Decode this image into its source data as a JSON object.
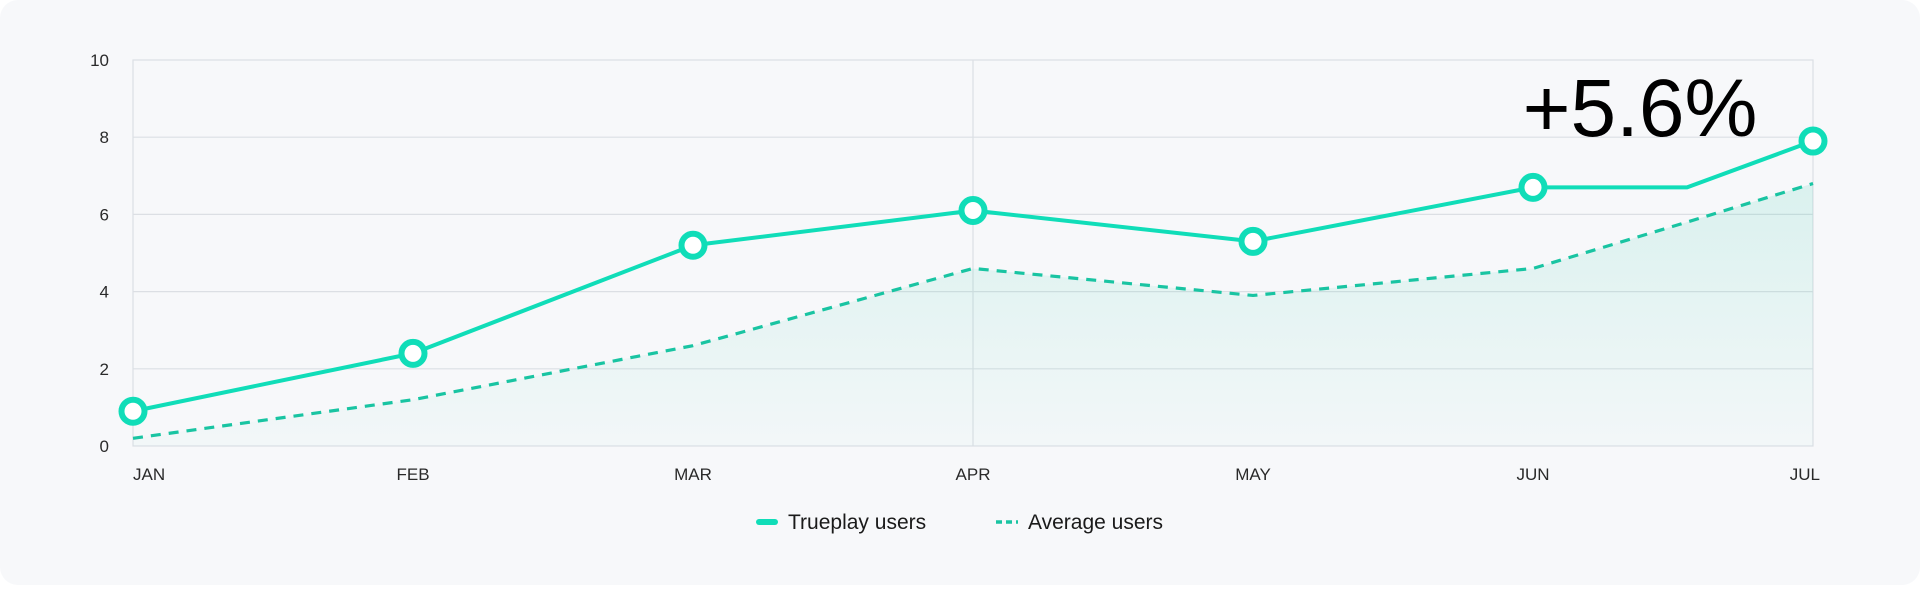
{
  "chart_data": {
    "type": "line",
    "categories": [
      "JAN",
      "FEB",
      "MAR",
      "APR",
      "MAY",
      "JUN",
      "JUL"
    ],
    "ylim": [
      0,
      10
    ],
    "yticks": [
      "0",
      "2",
      "4",
      "6",
      "8",
      "10"
    ],
    "grid": true,
    "legend_position": "bottom-center",
    "annotation": "+5.6%",
    "colors": {
      "series": "#10ddb8",
      "dashed": "#19c4a2",
      "grid": "#dcdfe4",
      "fill": "#19c4a2"
    },
    "series": [
      {
        "name": "Trueplay users",
        "style": "solid-with-markers",
        "points": [
          {
            "x": 0,
            "y": 0.9,
            "marker": true
          },
          {
            "x": 1,
            "y": 2.4,
            "marker": true
          },
          {
            "x": 2,
            "y": 5.2,
            "marker": true
          },
          {
            "x": 3,
            "y": 6.1,
            "marker": true
          },
          {
            "x": 4,
            "y": 5.3,
            "marker": true
          },
          {
            "x": 5,
            "y": 6.7,
            "marker": true
          },
          {
            "x": 5.55,
            "y": 6.7,
            "marker": false
          },
          {
            "x": 6,
            "y": 7.9,
            "marker": true
          }
        ]
      },
      {
        "name": "Average users",
        "style": "dashed-with-area",
        "points": [
          {
            "x": 0,
            "y": 0.2
          },
          {
            "x": 1,
            "y": 1.2
          },
          {
            "x": 2,
            "y": 2.6
          },
          {
            "x": 3,
            "y": 4.6
          },
          {
            "x": 4,
            "y": 3.9
          },
          {
            "x": 5,
            "y": 4.6
          },
          {
            "x": 5.55,
            "y": 5.8
          },
          {
            "x": 6,
            "y": 6.8
          }
        ]
      }
    ]
  }
}
